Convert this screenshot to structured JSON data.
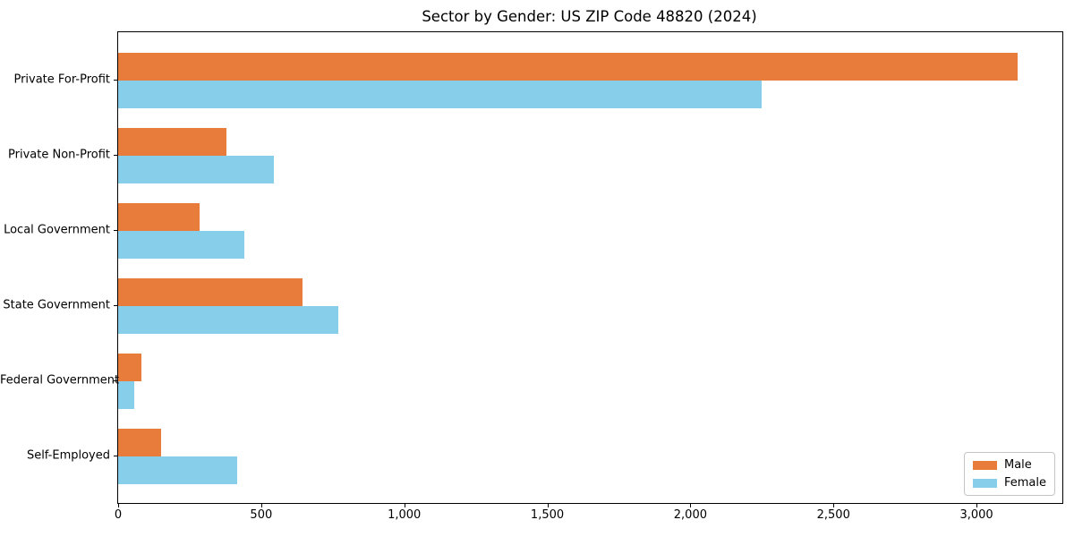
{
  "title": "Sector by Gender: US ZIP Code 48820 (2024)",
  "colors": {
    "male": "#E87D3B",
    "female": "#87CEEB",
    "axis": "#000000",
    "legend_border": "#c4c4c4",
    "background": "#ffffff"
  },
  "chart_data": {
    "type": "bar",
    "orientation": "horizontal",
    "title": "Sector by Gender: US ZIP Code 48820 (2024)",
    "xlabel": "",
    "ylabel": "",
    "categories": [
      "Private For-Profit",
      "Private Non-Profit",
      "Local Government",
      "State Government",
      "Federal Government",
      "Self-Employed"
    ],
    "series": [
      {
        "name": "Male",
        "color": "#E87D3B",
        "values": [
          3145,
          380,
          285,
          645,
          80,
          150
        ]
      },
      {
        "name": "Female",
        "color": "#87CEEB",
        "values": [
          2250,
          545,
          440,
          770,
          55,
          415
        ]
      }
    ],
    "xlim": [
      0,
      3300
    ],
    "xticks": [
      0,
      500,
      1000,
      1500,
      2000,
      2500,
      3000
    ],
    "xtick_labels": [
      "0",
      "500",
      "1,000",
      "1,500",
      "2,000",
      "2,500",
      "3,000"
    ],
    "legend_position": "lower right",
    "grid": false
  }
}
